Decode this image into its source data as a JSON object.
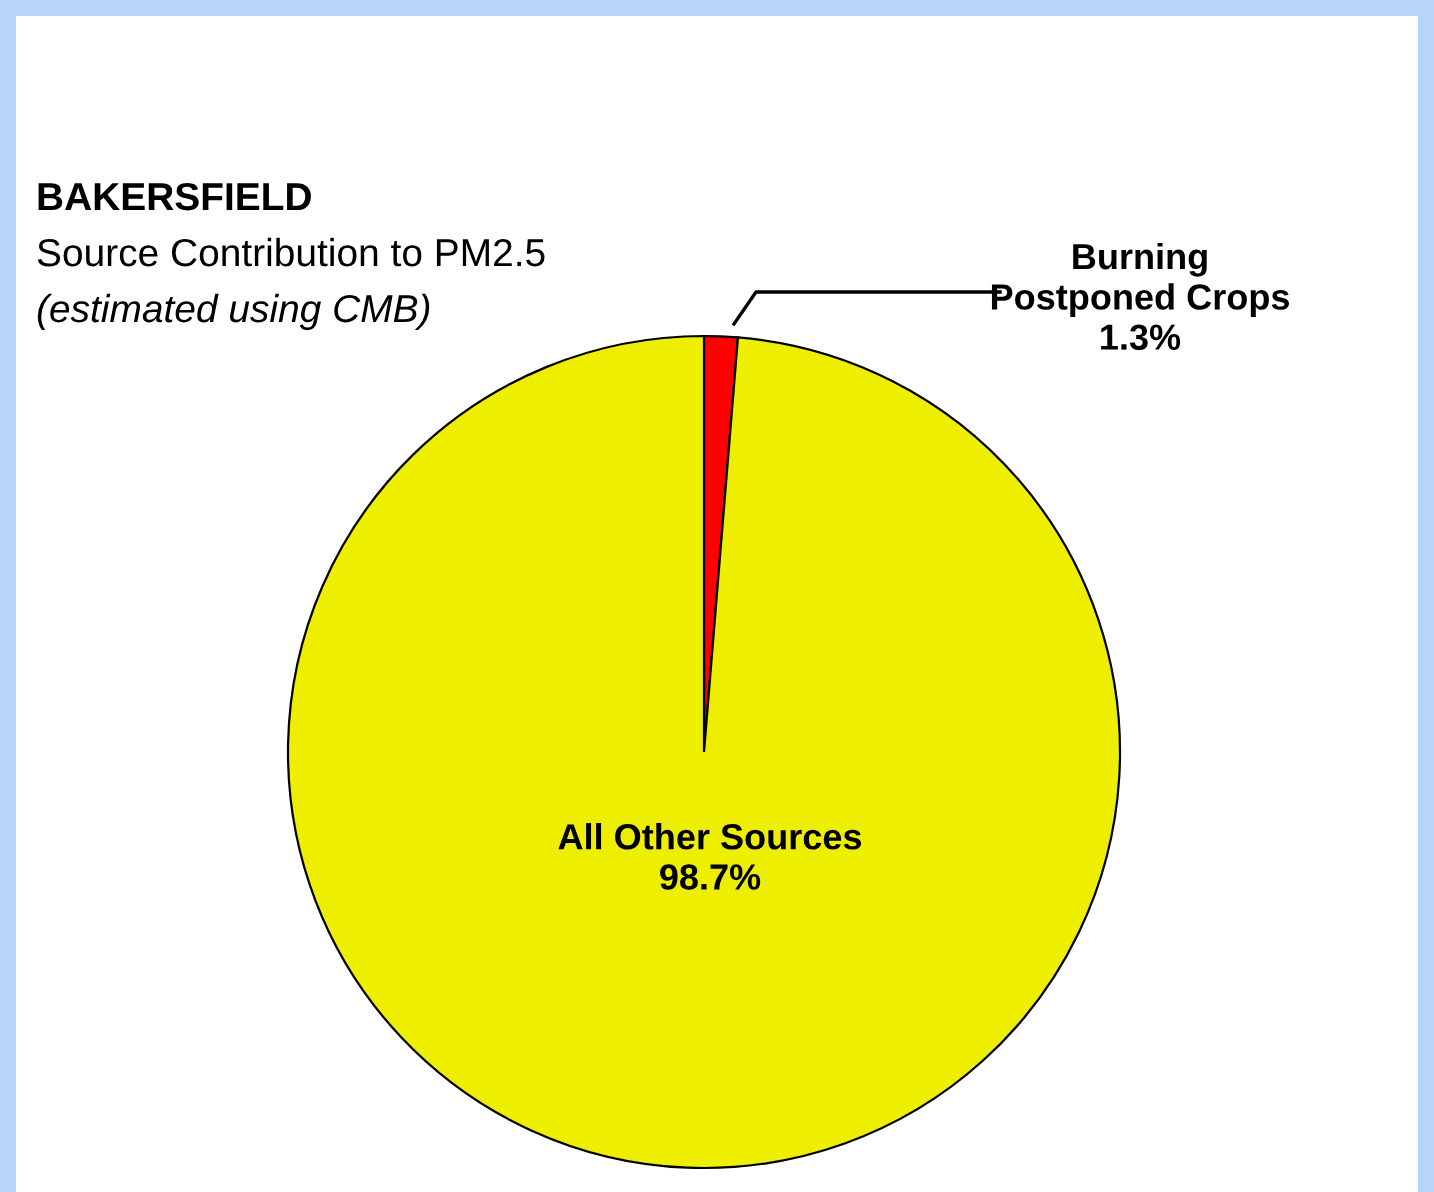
{
  "chart_data": {
    "type": "pie",
    "title": "BAKERSFIELD",
    "subtitle": "Source Contribution to PM2.5",
    "annotations": [
      "(estimated using CMB)"
    ],
    "categories": [
      "Burning Postponed Crops",
      "All Other Sources"
    ],
    "values": [
      1.3,
      98.7
    ],
    "colors": [
      "#ff0000",
      "#eeee00"
    ],
    "value_labels": [
      "1.3%",
      "98.7%"
    ]
  }
}
